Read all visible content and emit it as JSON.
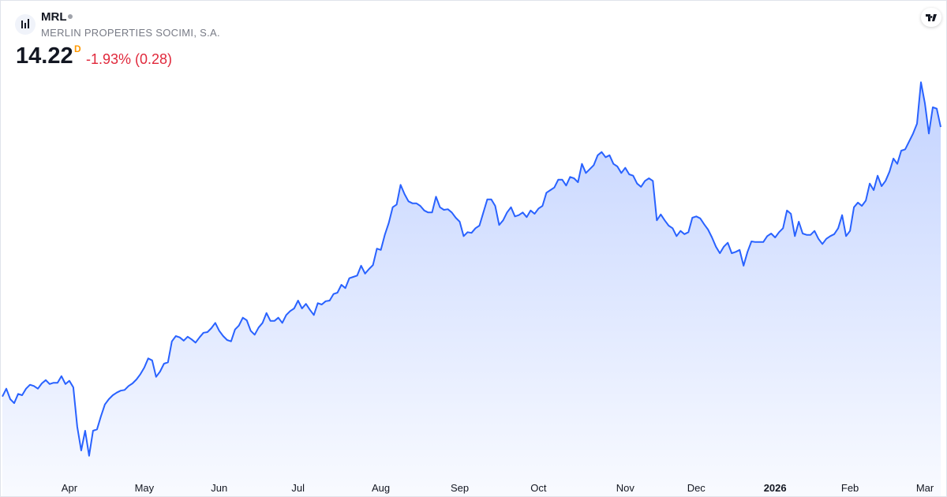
{
  "chart_data": {
    "type": "line",
    "title": "MRL",
    "subtitle": "MERLIN PROPERTIES SOCIMI, S.A.",
    "last_price": "14.22",
    "interval": "D",
    "change_label": "-1.93% (0.28)",
    "color": "#2962ff",
    "values": [
      10.12,
      10.24,
      10.08,
      10.02,
      10.16,
      10.14,
      10.24,
      10.3,
      10.28,
      10.24,
      10.32,
      10.37,
      10.31,
      10.33,
      10.33,
      10.43,
      10.31,
      10.36,
      10.26,
      9.66,
      9.3,
      9.6,
      9.22,
      9.6,
      9.62,
      9.82,
      10.0,
      10.08,
      10.14,
      10.18,
      10.21,
      10.22,
      10.28,
      10.32,
      10.38,
      10.46,
      10.56,
      10.7,
      10.67,
      10.42,
      10.5,
      10.62,
      10.64,
      10.96,
      11.04,
      11.02,
      10.97,
      11.03,
      10.99,
      10.94,
      11.02,
      11.09,
      11.1,
      11.16,
      11.24,
      11.12,
      11.04,
      10.98,
      10.96,
      11.14,
      11.2,
      11.32,
      11.28,
      11.12,
      11.06,
      11.17,
      11.24,
      11.39,
      11.27,
      11.27,
      11.32,
      11.24,
      11.36,
      11.42,
      11.46,
      11.58,
      11.46,
      11.53,
      11.44,
      11.36,
      11.54,
      11.52,
      11.57,
      11.58,
      11.68,
      11.7,
      11.82,
      11.77,
      11.92,
      11.94,
      11.96,
      12.11,
      11.99,
      12.06,
      12.12,
      12.37,
      12.35,
      12.58,
      12.76,
      13.0,
      13.04,
      13.34,
      13.2,
      13.09,
      13.06,
      13.06,
      13.02,
      12.95,
      12.92,
      12.92,
      13.16,
      13.0,
      12.96,
      12.97,
      12.92,
      12.84,
      12.78,
      12.56,
      12.62,
      12.61,
      12.68,
      12.72,
      12.92,
      13.12,
      13.12,
      13.02,
      12.73,
      12.8,
      12.92,
      13.0,
      12.86,
      12.88,
      12.92,
      12.85,
      12.95,
      12.9,
      12.98,
      13.02,
      13.22,
      13.26,
      13.3,
      13.42,
      13.42,
      13.33,
      13.46,
      13.44,
      13.38,
      13.66,
      13.52,
      13.58,
      13.64,
      13.79,
      13.84,
      13.76,
      13.79,
      13.66,
      13.62,
      13.52,
      13.6,
      13.5,
      13.48,
      13.36,
      13.31,
      13.4,
      13.44,
      13.4,
      12.8,
      12.89,
      12.8,
      12.72,
      12.68,
      12.56,
      12.64,
      12.59,
      12.62,
      12.84,
      12.86,
      12.83,
      12.74,
      12.66,
      12.54,
      12.4,
      12.3,
      12.4,
      12.46,
      12.3,
      12.32,
      12.35,
      12.11,
      12.32,
      12.48,
      12.47,
      12.47,
      12.47,
      12.56,
      12.6,
      12.54,
      12.62,
      12.68,
      12.95,
      12.9,
      12.56,
      12.78,
      12.6,
      12.58,
      12.58,
      12.64,
      12.52,
      12.44,
      12.52,
      12.56,
      12.59,
      12.68,
      12.88,
      12.56,
      12.64,
      13.0,
      13.07,
      13.02,
      13.1,
      13.36,
      13.26,
      13.48,
      13.32,
      13.4,
      13.54,
      13.74,
      13.66,
      13.86,
      13.88,
      14.0,
      14.12,
      14.27,
      14.9,
      14.58,
      14.12,
      14.52,
      14.5,
      14.22
    ],
    "xlim": [
      0,
      238
    ],
    "ylim": [
      8.94,
      16.14
    ],
    "xticks": [
      {
        "value": 17,
        "label": "Apr"
      },
      {
        "value": 36,
        "label": "May"
      },
      {
        "value": 55,
        "label": "Jun"
      },
      {
        "value": 75,
        "label": "Jul"
      },
      {
        "value": 96,
        "label": "Aug"
      },
      {
        "value": 116,
        "label": "Sep"
      },
      {
        "value": 136,
        "label": "Oct"
      },
      {
        "value": 158,
        "label": "Nov"
      },
      {
        "value": 176,
        "label": "Dec"
      },
      {
        "value": 196,
        "label": "2026"
      },
      {
        "value": 215,
        "label": "Feb"
      },
      {
        "value": 234,
        "label": "Mar"
      }
    ],
    "bold_xtick": "2026"
  }
}
